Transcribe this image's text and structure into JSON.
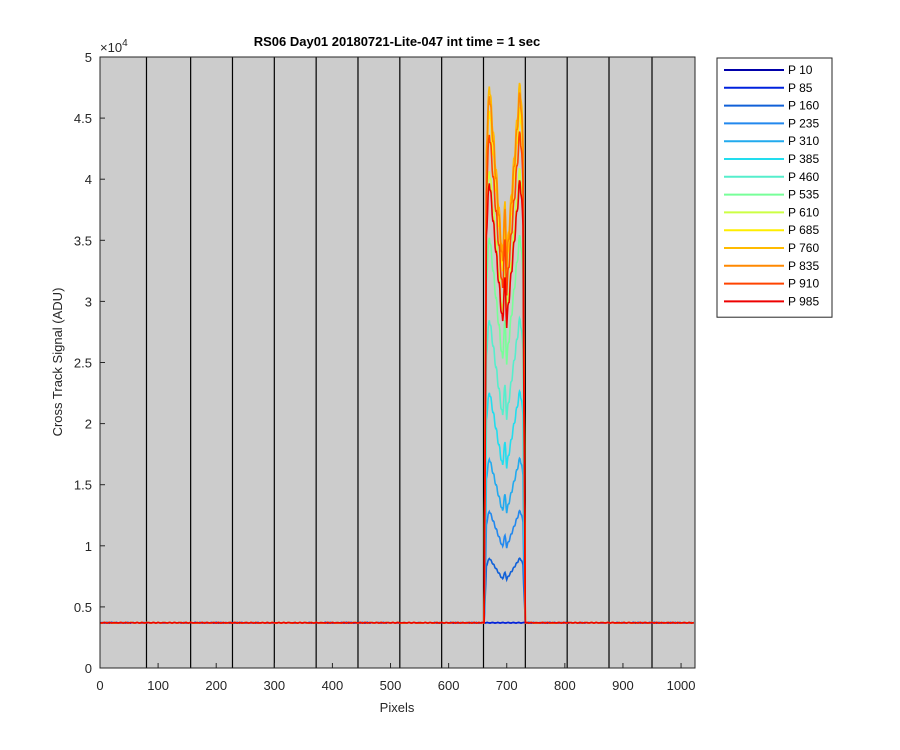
{
  "chart_data": {
    "type": "line",
    "title": "RS06 Day01 20180721-Lite-047 int time = 1 sec",
    "xlabel": "Pixels",
    "ylabel": "Cross Track Signal (ADU)",
    "y_exponent_label": "×10",
    "y_exponent_power": "4",
    "xlim": [
      0,
      1024
    ],
    "ylim": [
      0,
      50000
    ],
    "x_ticks": [
      0,
      100,
      200,
      300,
      400,
      500,
      600,
      700,
      800,
      900,
      1000
    ],
    "x_tick_labels": [
      "0",
      "100",
      "200",
      "300",
      "400",
      "500",
      "600",
      "700",
      "800",
      "900",
      "1000"
    ],
    "y_ticks": [
      0,
      5000,
      10000,
      15000,
      20000,
      25000,
      30000,
      35000,
      40000,
      45000,
      50000
    ],
    "y_tick_labels": [
      "0",
      "0.5",
      "1",
      "1.5",
      "2",
      "2.5",
      "3",
      "3.5",
      "4",
      "4.5",
      "5"
    ],
    "vertical_lines_x": [
      80,
      156,
      228,
      300,
      372,
      444,
      516,
      588,
      660,
      732,
      804,
      876,
      950
    ],
    "background_color": "#cccccc",
    "grid": false,
    "legend_position": "outside-right",
    "baseline": 3700,
    "plateau_x_range": [
      665,
      728
    ],
    "series": [
      {
        "name": "P 10",
        "color": "#0000aa",
        "peak": 3700
      },
      {
        "name": "P 85",
        "color": "#0022dd",
        "peak": 3700
      },
      {
        "name": "P 160",
        "color": "#1060d8",
        "peak": 9000
      },
      {
        "name": "P 235",
        "color": "#2288ee",
        "peak": 12900
      },
      {
        "name": "P 310",
        "color": "#22aaee",
        "peak": 17200
      },
      {
        "name": "P 385",
        "color": "#22ddee",
        "peak": 22700
      },
      {
        "name": "P 460",
        "color": "#55eecc",
        "peak": 28700
      },
      {
        "name": "P 535",
        "color": "#77ff99",
        "peak": 35500
      },
      {
        "name": "P 610",
        "color": "#ccff44",
        "peak": 41000
      },
      {
        "name": "P 685",
        "color": "#ffee00",
        "peak": 46000
      },
      {
        "name": "P 760",
        "color": "#ffbb00",
        "peak": 48000
      },
      {
        "name": "P 835",
        "color": "#ff8800",
        "peak": 47200
      },
      {
        "name": "P 910",
        "color": "#ff4400",
        "peak": 44000
      },
      {
        "name": "P 985",
        "color": "#ee0000",
        "peak": 40000
      }
    ]
  }
}
